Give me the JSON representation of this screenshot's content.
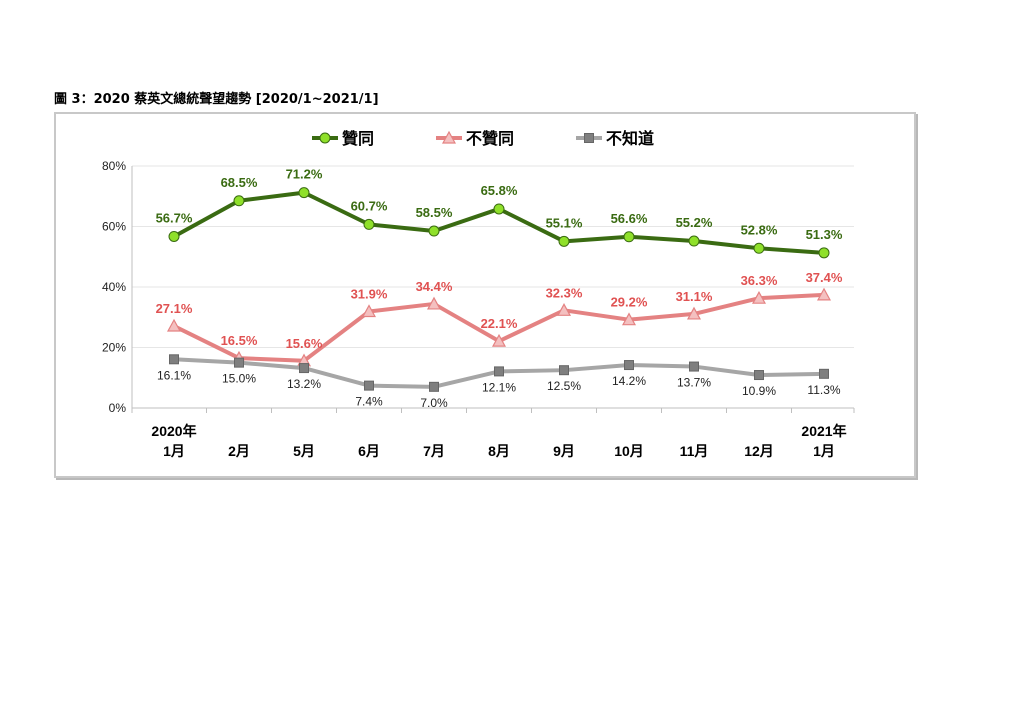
{
  "figure_title": "圖 3：2020 蔡英文總統聲望趨勢  [2020/1~2021/1]",
  "chart_data": {
    "type": "line",
    "title": "",
    "xlabel": "",
    "ylabel": "",
    "ylim": [
      0,
      80
    ],
    "yticks": [
      "0%",
      "20%",
      "40%",
      "60%",
      "80%"
    ],
    "legend_position": "top",
    "grid": true,
    "categories": [
      [
        "2020年",
        "1月"
      ],
      [
        "2月"
      ],
      [
        "5月"
      ],
      [
        "6月"
      ],
      [
        "7月"
      ],
      [
        "8月"
      ],
      [
        "9月"
      ],
      [
        "10月"
      ],
      [
        "11月"
      ],
      [
        "12月"
      ],
      [
        "2021年",
        "1月"
      ]
    ],
    "series": [
      {
        "name": "贊同",
        "color": "#3a6b12",
        "marker": "circle",
        "marker_color": "#8fe02a",
        "values": [
          56.7,
          68.5,
          71.2,
          60.7,
          58.5,
          65.8,
          55.1,
          56.6,
          55.2,
          52.8,
          51.3
        ],
        "labels": [
          "56.7%",
          "68.5%",
          "71.2%",
          "60.7%",
          "58.5%",
          "65.8%",
          "55.1%",
          "56.6%",
          "55.2%",
          "52.8%",
          "51.3%"
        ]
      },
      {
        "name": "不贊同",
        "color": "#e48282",
        "marker": "triangle",
        "marker_color": "#f4c0c0",
        "label_color": "#e05252",
        "values": [
          27.1,
          16.5,
          15.6,
          31.9,
          34.4,
          22.1,
          32.3,
          29.2,
          31.1,
          36.3,
          37.4
        ],
        "labels": [
          "27.1%",
          "16.5%",
          "15.6%",
          "31.9%",
          "34.4%",
          "22.1%",
          "32.3%",
          "29.2%",
          "31.1%",
          "36.3%",
          "37.4%"
        ]
      },
      {
        "name": "不知道",
        "color": "#a6a6a6",
        "marker": "square",
        "marker_color": "#7f7f7f",
        "label_color": "#222222",
        "values": [
          16.1,
          15.0,
          13.2,
          7.4,
          7.0,
          12.1,
          12.5,
          14.2,
          13.7,
          10.9,
          11.3
        ],
        "labels": [
          "16.1%",
          "15.0%",
          "13.2%",
          "7.4%",
          "7.0%",
          "12.1%",
          "12.5%",
          "14.2%",
          "13.7%",
          "10.9%",
          "11.3%"
        ]
      }
    ]
  }
}
